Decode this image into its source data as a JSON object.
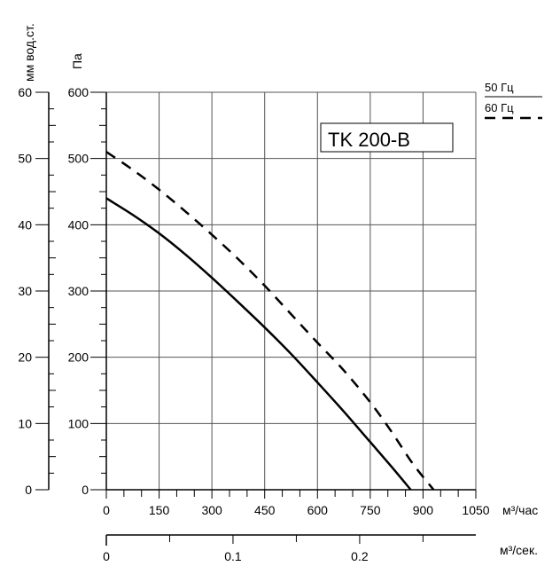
{
  "chart_data": {
    "type": "line",
    "title": "TK 200-B",
    "x": [
      0,
      150,
      300,
      450,
      600,
      750,
      870,
      930
    ],
    "series": [
      {
        "name": "50 Гц",
        "line_style": "solid",
        "points": [
          [
            0,
            440
          ],
          [
            75,
            415
          ],
          [
            150,
            387
          ],
          [
            225,
            355
          ],
          [
            300,
            320
          ],
          [
            375,
            283
          ],
          [
            450,
            245
          ],
          [
            525,
            205
          ],
          [
            600,
            162
          ],
          [
            675,
            118
          ],
          [
            750,
            72
          ],
          [
            810,
            35
          ],
          [
            865,
            0
          ]
        ]
      },
      {
        "name": "60 Гц",
        "line_style": "dashed",
        "points": [
          [
            0,
            510
          ],
          [
            75,
            483
          ],
          [
            150,
            453
          ],
          [
            225,
            420
          ],
          [
            300,
            385
          ],
          [
            375,
            348
          ],
          [
            450,
            308
          ],
          [
            525,
            265
          ],
          [
            600,
            222
          ],
          [
            675,
            180
          ],
          [
            750,
            132
          ],
          [
            810,
            88
          ],
          [
            870,
            40
          ],
          [
            930,
            0
          ]
        ]
      }
    ],
    "x_axis": {
      "label": "м³/час",
      "ticks": [
        "0",
        "150",
        "300",
        "450",
        "600",
        "750",
        "900",
        "1050"
      ],
      "range": [
        0,
        1050
      ],
      "grid": true
    },
    "y_axis_pa": {
      "label": "Па",
      "ticks": [
        "0",
        "100",
        "200",
        "300",
        "400",
        "500",
        "600"
      ],
      "range": [
        0,
        600
      ],
      "grid": true
    },
    "y_axis_mm": {
      "label": "мм вод.ст.",
      "ticks": [
        "0",
        "10",
        "20",
        "30",
        "40",
        "50",
        "60"
      ],
      "range": [
        0,
        60
      ]
    },
    "x_axis_secondary": {
      "label": "м³/сек.",
      "ticks": [
        "0",
        "0.1",
        "0.2"
      ],
      "range": [
        0,
        0.2917
      ]
    },
    "legend": [
      {
        "label": "50 Гц",
        "line_style": "solid"
      },
      {
        "label": "60 Гц",
        "line_style": "dashed"
      }
    ],
    "legend_position": "top-right"
  }
}
